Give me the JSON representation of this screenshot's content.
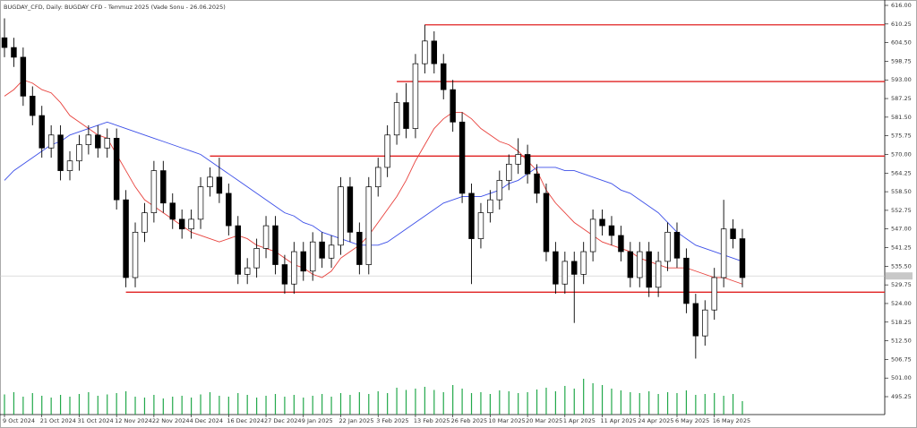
{
  "chart_data": {
    "type": "candlestick",
    "title": "BUGDAY_CFD, Daily: BUGDAY CFD - Temmuz 2025 (Vade Sonu - 26.06.2025)",
    "categories": [
      "9 Oct 2024",
      null,
      null,
      null,
      "21 Oct 2024",
      null,
      null,
      null,
      "31 Oct 2024",
      null,
      null,
      null,
      "12 Nov 2024",
      null,
      null,
      null,
      "22 Nov 2024",
      null,
      null,
      null,
      "4 Dec 2024",
      null,
      null,
      null,
      "16 Dec 2024",
      null,
      null,
      null,
      "27 Dec 2024",
      null,
      null,
      null,
      "9 Jan 2025",
      null,
      null,
      null,
      "22 Jan 2025",
      null,
      null,
      null,
      "3 Feb 2025",
      null,
      null,
      null,
      "13 Feb 2025",
      null,
      null,
      null,
      "26 Feb 2025",
      null,
      null,
      null,
      "10 Mar 2025",
      null,
      null,
      null,
      "20 Mar 2025",
      null,
      null,
      null,
      "1 Apr 2025",
      null,
      null,
      null,
      "11 Apr 2025",
      null,
      null,
      null,
      "24 Apr 2025",
      null,
      null,
      null,
      "6 May 2025",
      null,
      null,
      null,
      "16 May 2025",
      null,
      null,
      null
    ],
    "open": [
      606,
      603,
      600,
      588,
      582,
      572,
      576,
      565,
      568,
      573,
      576,
      572,
      575,
      556,
      532,
      546,
      552,
      565,
      555,
      550,
      547,
      550,
      560,
      563,
      558,
      548,
      533,
      535,
      541,
      548,
      536,
      530,
      540,
      534,
      543,
      538,
      542,
      560,
      546,
      536,
      560,
      566,
      576,
      586,
      578,
      598,
      605,
      598,
      590,
      580,
      558,
      544,
      552,
      556,
      562,
      567,
      570,
      564,
      558,
      540,
      530,
      537,
      533,
      540,
      550,
      548,
      545,
      540,
      532,
      540,
      529,
      537,
      546,
      538,
      524,
      514,
      522,
      532,
      547,
      544
    ],
    "high": [
      612,
      606,
      603,
      591,
      585,
      579,
      579,
      571,
      576,
      579,
      579,
      578,
      578,
      559,
      549,
      555,
      568,
      568,
      558,
      553,
      553,
      563,
      566,
      569,
      561,
      551,
      538,
      544,
      551,
      551,
      539,
      543,
      543,
      546,
      546,
      545,
      563,
      563,
      549,
      563,
      569,
      579,
      589,
      592,
      601,
      610,
      608,
      601,
      593,
      583,
      561,
      555,
      559,
      565,
      570,
      575,
      573,
      567,
      561,
      543,
      540,
      540,
      543,
      553,
      553,
      551,
      548,
      543,
      543,
      543,
      540,
      549,
      549,
      541,
      527,
      525,
      535,
      556,
      550,
      547
    ],
    "low": [
      600,
      597,
      585,
      579,
      569,
      569,
      562,
      562,
      565,
      570,
      569,
      569,
      553,
      529,
      529,
      543,
      549,
      552,
      547,
      544,
      544,
      547,
      557,
      555,
      545,
      530,
      530,
      532,
      538,
      533,
      527,
      527,
      531,
      531,
      535,
      535,
      539,
      543,
      533,
      533,
      557,
      563,
      573,
      575,
      575,
      595,
      595,
      587,
      577,
      555,
      530,
      541,
      549,
      553,
      559,
      564,
      561,
      555,
      537,
      527,
      527,
      518,
      530,
      537,
      545,
      542,
      537,
      529,
      529,
      526,
      526,
      534,
      535,
      521,
      507,
      511,
      519,
      529,
      541,
      529
    ],
    "close": [
      603,
      600,
      588,
      582,
      572,
      576,
      565,
      568,
      573,
      576,
      572,
      575,
      556,
      532,
      546,
      552,
      565,
      555,
      550,
      547,
      550,
      560,
      563,
      558,
      548,
      533,
      535,
      541,
      548,
      536,
      530,
      540,
      534,
      543,
      538,
      542,
      560,
      546,
      536,
      560,
      566,
      576,
      586,
      578,
      598,
      605,
      598,
      590,
      580,
      558,
      544,
      552,
      556,
      562,
      567,
      570,
      564,
      558,
      540,
      530,
      537,
      533,
      540,
      550,
      548,
      545,
      540,
      532,
      540,
      529,
      537,
      546,
      538,
      524,
      514,
      522,
      532,
      547,
      544,
      532
    ],
    "up_color": "#ffffff",
    "down_color": "#000000",
    "series": [
      {
        "color": "#e8413c",
        "values": [
          588,
          590,
          593,
          592,
          590,
          589,
          586,
          582,
          580,
          578,
          576,
          575,
          570,
          565,
          560,
          556,
          554,
          552,
          550,
          548,
          546,
          545,
          544,
          543,
          544,
          545,
          544,
          542,
          541,
          540,
          538,
          536,
          535,
          533,
          532,
          534,
          538,
          540,
          542,
          545,
          549,
          553,
          557,
          562,
          568,
          573,
          578,
          581,
          583,
          583,
          581,
          578,
          576,
          574,
          573,
          571,
          568,
          565,
          559,
          555,
          552,
          549,
          547,
          545,
          543,
          542,
          541,
          540,
          538,
          537,
          536,
          535,
          535,
          535,
          534,
          533,
          532,
          532,
          531,
          530
        ]
      },
      {
        "color": "#3c4fe8",
        "values": [
          562,
          565,
          567,
          569,
          571,
          573,
          574,
          576,
          577,
          578,
          579,
          580,
          579,
          578,
          577,
          576,
          575,
          574,
          573,
          572,
          571,
          570,
          568,
          566,
          564,
          562,
          560,
          558,
          556,
          554,
          552,
          551,
          549,
          548,
          546,
          545,
          544,
          543,
          542,
          542,
          542,
          543,
          545,
          547,
          549,
          551,
          553,
          555,
          556,
          557,
          557,
          557,
          558,
          559,
          561,
          562,
          564,
          566,
          566,
          566,
          565,
          565,
          564,
          563,
          562,
          561,
          559,
          558,
          556,
          554,
          552,
          549,
          546,
          544,
          542,
          541,
          540,
          539,
          538,
          537
        ]
      }
    ],
    "volume": [
      45,
      50,
      40,
      48,
      42,
      38,
      44,
      40,
      46,
      50,
      42,
      45,
      48,
      52,
      40,
      38,
      44,
      36,
      40,
      42,
      38,
      45,
      50,
      42,
      40,
      48,
      44,
      38,
      42,
      46,
      40,
      44,
      38,
      42,
      46,
      40,
      48,
      44,
      50,
      46,
      52,
      48,
      60,
      55,
      58,
      62,
      55,
      50,
      66,
      58,
      48,
      50,
      46,
      54,
      52,
      48,
      50,
      56,
      60,
      52,
      64,
      58,
      80,
      70,
      66,
      58,
      54,
      50,
      48,
      52,
      46,
      50,
      48,
      54,
      44,
      46,
      48,
      42,
      46,
      30
    ],
    "volume_color": "#22a84a",
    "volume_lim": [
      0,
      100
    ],
    "levels": [
      {
        "value": 610,
        "from": 45
      },
      {
        "value": 592.5,
        "from": 42
      },
      {
        "value": 569.5,
        "from": 22
      },
      {
        "value": 527.5,
        "from": 13
      }
    ],
    "level_color": "#e02020",
    "last_price": 532.5,
    "ylim": [
      490,
      617.66
    ],
    "yticks": [
      {
        "value": 616,
        "label": "616.00"
      },
      {
        "value": 610.25,
        "label": "610.25"
      },
      {
        "value": 604.5,
        "label": "604.50"
      },
      {
        "value": 598.75,
        "label": "598.75"
      },
      {
        "value": 593,
        "label": "593.00"
      },
      {
        "value": 587.25,
        "label": "587.25"
      },
      {
        "value": 581.5,
        "label": "581.50"
      },
      {
        "value": 575.75,
        "label": "575.75"
      },
      {
        "value": 570,
        "label": "570.00"
      },
      {
        "value": 564.25,
        "label": "564.25"
      },
      {
        "value": 558.5,
        "label": "558.50"
      },
      {
        "value": 552.75,
        "label": "552.75"
      },
      {
        "value": 547,
        "label": "547.00"
      },
      {
        "value": 541.25,
        "label": "541.25"
      },
      {
        "value": 535.5,
        "label": "535.50"
      },
      {
        "value": 529.75,
        "label": "529.75"
      },
      {
        "value": 524,
        "label": "524.00"
      },
      {
        "value": 518.25,
        "label": "518.25"
      },
      {
        "value": 512.5,
        "label": "512.50"
      },
      {
        "value": 506.75,
        "label": "506.75"
      },
      {
        "value": 501,
        "label": "501.00"
      },
      {
        "value": 495.25,
        "label": "495.25"
      }
    ]
  }
}
